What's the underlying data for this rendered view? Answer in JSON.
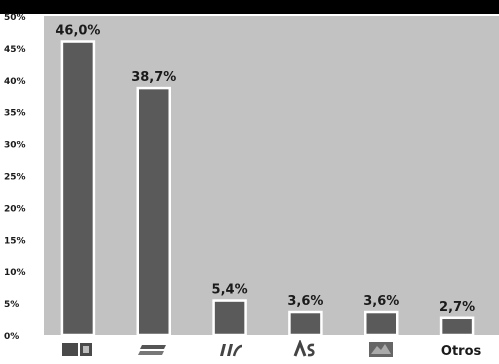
{
  "chart_data": {
    "type": "bar",
    "title": "",
    "xlabel": "",
    "ylabel": "",
    "ylim": [
      0,
      50
    ],
    "yticks": [
      "0%",
      "5%",
      "10%",
      "15%",
      "20%",
      "25%",
      "30%",
      "35%",
      "40%",
      "45%",
      "50%"
    ],
    "grid": false,
    "categories": [
      "PSOE",
      "PP",
      "IU",
      "AS",
      "UPN",
      "Otros"
    ],
    "values": [
      46.0,
      38.7,
      5.4,
      3.6,
      3.6,
      2.7
    ],
    "value_labels": [
      "46,0%",
      "38,7%",
      "5,4%",
      "3,6%",
      "3,6%",
      "2,7%"
    ],
    "category_display": [
      {
        "kind": "logo",
        "icon": "psoe-logo-icon"
      },
      {
        "kind": "logo",
        "icon": "pp-logo-icon"
      },
      {
        "kind": "logo",
        "icon": "iu-logo-icon"
      },
      {
        "kind": "logo",
        "icon": "andalusista-logo-icon"
      },
      {
        "kind": "logo",
        "icon": "regional-party-logo-icon"
      },
      {
        "kind": "text",
        "label": "Otros"
      }
    ],
    "colors": {
      "plot_background": "#c2c2c2",
      "bar": "#5a5a5a",
      "bar_outline": "#ffffff",
      "text": "#1a1a1a",
      "top_band": "#000000",
      "logo_box": "#4a4a4a"
    }
  }
}
